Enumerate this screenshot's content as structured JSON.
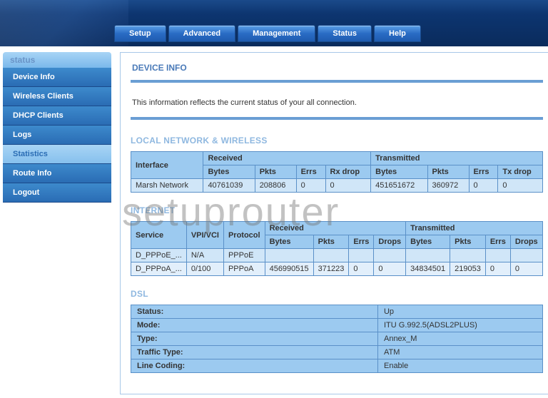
{
  "topnav": [
    {
      "label": "Setup"
    },
    {
      "label": "Advanced"
    },
    {
      "label": "Management"
    },
    {
      "label": "Status"
    },
    {
      "label": "Help"
    }
  ],
  "sidebar": {
    "heading": "status",
    "items": [
      {
        "label": "Device Info",
        "active": false
      },
      {
        "label": "Wireless Clients",
        "active": false
      },
      {
        "label": "DHCP Clients",
        "active": false
      },
      {
        "label": "Logs",
        "active": false
      },
      {
        "label": "Statistics",
        "active": true
      },
      {
        "label": "Route Info",
        "active": false
      },
      {
        "label": "Logout",
        "active": false
      }
    ]
  },
  "page": {
    "title": "DEVICE INFO",
    "desc": "This information reflects the current status of your all connection."
  },
  "local": {
    "title": "LOCAL NETWORK & WIRELESS",
    "head": {
      "interface": "Interface",
      "received": "Received",
      "transmitted": "Transmitted",
      "bytes": "Bytes",
      "pkts": "Pkts",
      "errs": "Errs",
      "rxdrop": "Rx drop",
      "txdrop": "Tx drop"
    },
    "rows": [
      {
        "iface": "Marsh Network",
        "rbytes": "40761039",
        "rpkts": "208806",
        "rerrs": "0",
        "rdrop": "0",
        "tbytes": "451651672",
        "tpkts": "360972",
        "terrs": "0",
        "tdrop": "0"
      }
    ]
  },
  "internet": {
    "title": "INTERNET",
    "head": {
      "service": "Service",
      "vpivci": "VPI/VCI",
      "protocol": "Protocol",
      "received": "Received",
      "transmitted": "Transmitted",
      "bytes": "Bytes",
      "pkts": "Pkts",
      "errs": "Errs",
      "drops": "Drops"
    },
    "rows": [
      {
        "svc": "D_PPPoE_...",
        "vpi": "N/A",
        "proto": "PPPoE",
        "rb": "",
        "rp": "",
        "re": "",
        "rd": "",
        "tb": "",
        "tp": "",
        "te": "",
        "td": ""
      },
      {
        "svc": "D_PPPoA_...",
        "vpi": "0/100",
        "proto": "PPPoA",
        "rb": "456990515",
        "rp": "371223",
        "re": "0",
        "rd": "0",
        "tb": "34834501",
        "tp": "219053",
        "te": "0",
        "td": "0"
      }
    ]
  },
  "dsl": {
    "title": "DSL",
    "rows": [
      {
        "k": "Status:",
        "v": "Up"
      },
      {
        "k": "Mode:",
        "v": "ITU G.992.5(ADSL2PLUS)"
      },
      {
        "k": "Type:",
        "v": "Annex_M"
      },
      {
        "k": "Traffic Type:",
        "v": "ATM"
      },
      {
        "k": "Line Coding:",
        "v": "Enable"
      }
    ]
  },
  "watermark": "setuprouter"
}
